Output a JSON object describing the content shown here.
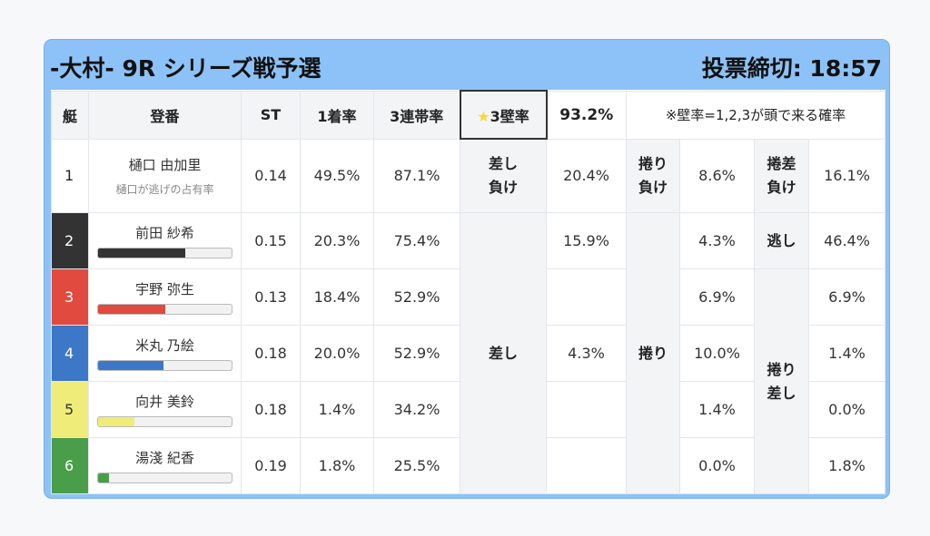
{
  "header": {
    "title": "-大村- 9R シリーズ戦予選",
    "deadline": "投票締切: 18:57"
  },
  "columns": {
    "boat": "艇",
    "name": "登番",
    "st": "ST",
    "win": "1着率",
    "top3": "3連帯率",
    "wall_label": "3壁率",
    "wall_value": "93.2%",
    "note": "※壁率=1,2,3が頭で来る確率"
  },
  "colors": {
    "accent": "#8cc2f7",
    "wall": "#e3a23a",
    "wall_value": "#e03a3a"
  },
  "rows": [
    {
      "boat": "1",
      "name": "樋口 由加里",
      "sub": "樋口が逃げの占有率",
      "st": "0.14",
      "win": "49.5%",
      "top3": "87.1%",
      "c6": "差し負け",
      "c7": "20.4%",
      "c8": "捲り負け",
      "c9": "8.6%",
      "c10": "捲差負け",
      "c11": "16.1%",
      "color": "#ffffff"
    },
    {
      "boat": "2",
      "name": "前田 紗希",
      "st": "0.15",
      "win": "20.3%",
      "top3": "75.4%",
      "c7": "15.9%",
      "c9": "4.3%",
      "c10": "逃し",
      "c11": "46.4%",
      "color": "#333333",
      "bar": 65
    },
    {
      "boat": "3",
      "name": "宇野 弥生",
      "st": "0.13",
      "win": "18.4%",
      "top3": "52.9%",
      "c7": "",
      "c9": "6.9%",
      "c11": "6.9%",
      "color": "#e04a3f",
      "bar": 50
    },
    {
      "boat": "4",
      "name": "米丸 乃絵",
      "st": "0.18",
      "win": "20.0%",
      "top3": "52.9%",
      "c7": "4.3%",
      "c9": "10.0%",
      "c11": "1.4%",
      "color": "#3d77c7",
      "bar": 49
    },
    {
      "boat": "5",
      "name": "向井 美鈴",
      "st": "0.18",
      "win": "1.4%",
      "top3": "34.2%",
      "c7": "",
      "c9": "1.4%",
      "c11": "0.0%",
      "color": "#f0ec7a",
      "bar": 27
    },
    {
      "boat": "6",
      "name": "湯淺 紀香",
      "st": "0.19",
      "win": "1.8%",
      "top3": "25.5%",
      "c7": "",
      "c9": "0.0%",
      "c11": "1.8%",
      "color": "#4a9e4a",
      "bar": 8
    }
  ],
  "merged": {
    "sashi": "差し",
    "makuri": "捲り",
    "makurisashi": "捲り差し"
  }
}
